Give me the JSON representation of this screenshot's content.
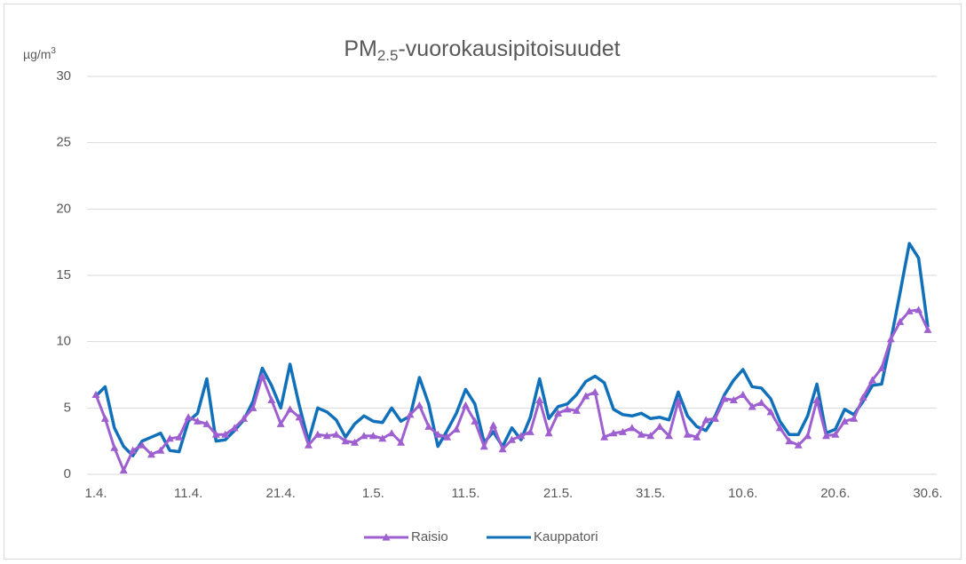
{
  "chart_data": {
    "type": "line",
    "title": [
      "PM",
      "2.5",
      "-vuorokausipitoisuudet"
    ],
    "y_unit": [
      "µg/m",
      "3"
    ],
    "categories": [
      "1.4.",
      null,
      null,
      null,
      null,
      null,
      null,
      null,
      null,
      null,
      "11.4.",
      null,
      null,
      null,
      null,
      null,
      null,
      null,
      null,
      null,
      "21.4.",
      null,
      null,
      null,
      null,
      null,
      null,
      null,
      null,
      null,
      "1.5.",
      null,
      null,
      null,
      null,
      null,
      null,
      null,
      null,
      null,
      "11.5.",
      null,
      null,
      null,
      null,
      null,
      null,
      null,
      null,
      null,
      "21.5.",
      null,
      null,
      null,
      null,
      null,
      null,
      null,
      null,
      null,
      "31.5.",
      null,
      null,
      null,
      null,
      null,
      null,
      null,
      null,
      null,
      "10.6.",
      null,
      null,
      null,
      null,
      null,
      null,
      null,
      null,
      null,
      "20.6.",
      null,
      null,
      null,
      null,
      null,
      null,
      null,
      null,
      null,
      "30.6."
    ],
    "series": [
      {
        "name": "Raisio",
        "color": "#9e5fd0",
        "marker": "triangle",
        "values": [
          6,
          4.2,
          2,
          0.3,
          1.8,
          2.2,
          1.5,
          1.8,
          2.7,
          2.8,
          4.3,
          4,
          3.8,
          3,
          3,
          3.5,
          4.2,
          5,
          7.4,
          5.6,
          3.8,
          4.9,
          4.3,
          2.2,
          3,
          2.9,
          3,
          2.5,
          2.4,
          2.9,
          2.9,
          2.7,
          3.1,
          2.4,
          4.5,
          5.2,
          3.6,
          3,
          2.8,
          3.4,
          5.2,
          4,
          2.1,
          3.7,
          1.9,
          2.6,
          2.9,
          3.2,
          5.6,
          3.1,
          4.6,
          4.9,
          4.8,
          5.9,
          6.2,
          2.8,
          3.1,
          3.2,
          3.5,
          3,
          2.9,
          3.6,
          2.9,
          5.5,
          3,
          2.8,
          4.1,
          4.2,
          5.7,
          5.6,
          6,
          5.1,
          5.4,
          4.7,
          3.5,
          2.5,
          2.2,
          2.9,
          5.6,
          2.9,
          3,
          4,
          4.2,
          5.8,
          7.1,
          8,
          10.2,
          11.5,
          12.3,
          12.4,
          10.9
        ]
      },
      {
        "name": "Kauppatori",
        "color": "#1170ba",
        "marker": "none",
        "values": [
          5.9,
          6.6,
          3.5,
          2.1,
          1.4,
          2.5,
          2.8,
          3.1,
          1.8,
          1.7,
          4,
          4.6,
          7.2,
          2.5,
          2.6,
          3.3,
          4.1,
          5.5,
          8,
          6.7,
          5,
          8.3,
          5.2,
          2.5,
          5,
          4.7,
          4.1,
          2.8,
          3.8,
          4.4,
          4,
          3.9,
          5,
          4,
          4.4,
          7.3,
          5.3,
          2.1,
          3.3,
          4.6,
          6.4,
          5.3,
          2.4,
          3.2,
          2.1,
          3.5,
          2.6,
          4.3,
          7.2,
          4.2,
          5.1,
          5.3,
          6,
          7,
          7.4,
          6.9,
          4.9,
          4.5,
          4.4,
          4.6,
          4.2,
          4.3,
          4.1,
          6.2,
          4.4,
          3.6,
          3.3,
          4.4,
          6,
          7.1,
          7.9,
          6.6,
          6.5,
          5.7,
          4,
          3,
          3,
          4.4,
          6.8,
          3.1,
          3.4,
          4.9,
          4.5,
          5.5,
          6.7,
          6.8,
          10.1,
          13.7,
          17.4,
          16.3,
          11.1
        ]
      }
    ],
    "ylim": [
      0,
      30
    ],
    "yticks": [
      0,
      5,
      10,
      15,
      20,
      25,
      30
    ],
    "grid": true,
    "legend": "bottom"
  }
}
